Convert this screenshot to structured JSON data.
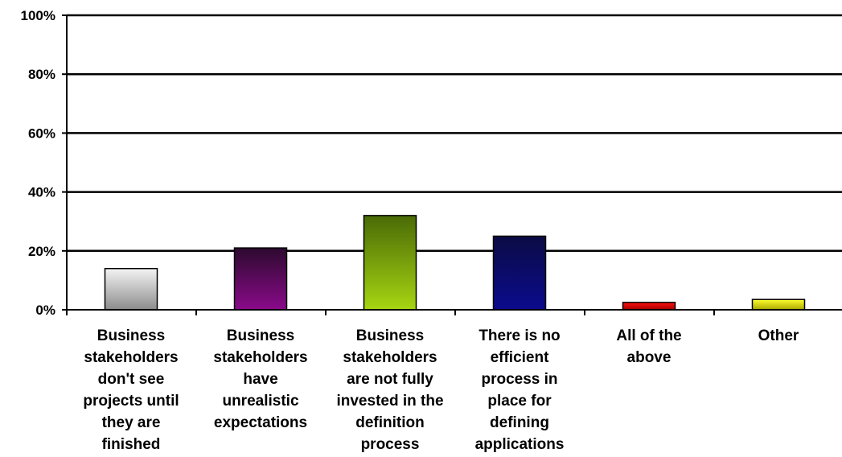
{
  "chart_data": {
    "type": "bar",
    "title": "",
    "xlabel": "",
    "ylabel": "",
    "ylim": [
      0,
      100
    ],
    "yticks": [
      "0%",
      "20%",
      "40%",
      "60%",
      "80%",
      "100%"
    ],
    "grid": true,
    "legend": "none",
    "categories": [
      [
        "Business",
        "stakeholders",
        "don't see",
        "projects until",
        "they are",
        "finished"
      ],
      [
        "Business",
        "stakeholders",
        "have",
        "unrealistic",
        "expectations"
      ],
      [
        "Business",
        "stakeholders",
        "are not fully",
        "invested in the",
        "definition",
        "process"
      ],
      [
        "There is no",
        "efficient",
        "process in",
        "place for",
        "defining",
        "applications"
      ],
      [
        "All of the",
        "above"
      ],
      [
        "Other"
      ]
    ],
    "values": [
      14,
      21,
      32,
      25,
      2.5,
      3.5
    ],
    "bar_gradients": [
      [
        "#f4f4f4",
        "#8c8c8c"
      ],
      [
        "#2c0a2e",
        "#8a0a8a"
      ],
      [
        "#4a6a06",
        "#a6d612"
      ],
      [
        "#0b0b45",
        "#0b0b8e"
      ],
      [
        "#ff1010",
        "#a30000"
      ],
      [
        "#ffff30",
        "#a8a800"
      ]
    ]
  }
}
